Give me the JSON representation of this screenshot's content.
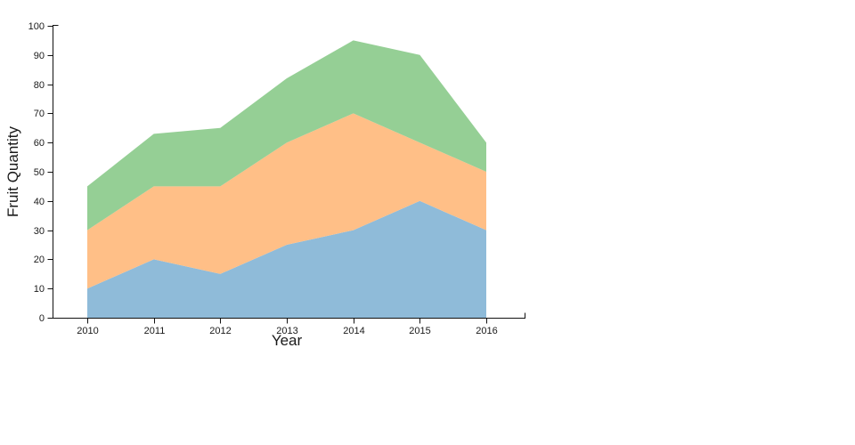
{
  "chart_data": {
    "type": "area",
    "stacked": true,
    "title": "",
    "xlabel": "Year",
    "ylabel": "Fruit Quantity",
    "x": [
      2010,
      2011,
      2012,
      2013,
      2014,
      2015,
      2016
    ],
    "xticks": [
      "2010",
      "2011",
      "2012",
      "2013",
      "2014",
      "2015",
      "2016"
    ],
    "yticks": [
      0,
      10,
      20,
      30,
      40,
      50,
      60,
      70,
      80,
      90,
      100
    ],
    "ylim": [
      0,
      100
    ],
    "grid": false,
    "legend": "none",
    "series": [
      {
        "name": "blue-bottom-series",
        "color": "#8fbbd9",
        "values": [
          10,
          20,
          15,
          25,
          30,
          40,
          30
        ],
        "stack_tops": [
          10,
          20,
          15,
          25,
          30,
          40,
          30
        ]
      },
      {
        "name": "orange-middle-series",
        "color": "#ffbf87",
        "values": [
          20,
          25,
          30,
          35,
          40,
          20,
          20
        ],
        "stack_tops": [
          30,
          45,
          45,
          60,
          70,
          60,
          50
        ]
      },
      {
        "name": "green-top-series",
        "color": "#95cf95",
        "values": [
          15,
          18,
          20,
          22,
          25,
          30,
          10
        ],
        "stack_tops": [
          45,
          63,
          65,
          82,
          95,
          90,
          60
        ]
      }
    ],
    "axis_color": "#111111",
    "text_color": "#1a1a1a"
  }
}
